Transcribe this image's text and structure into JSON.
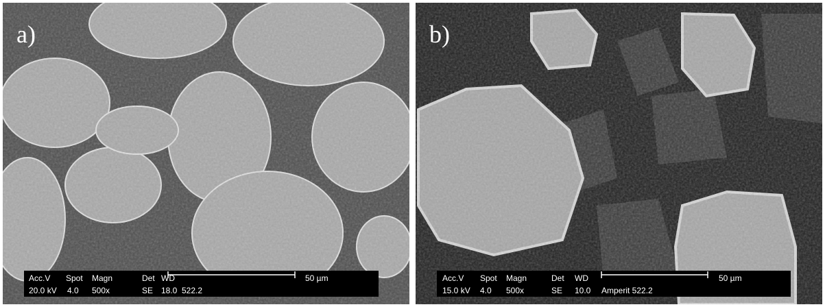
{
  "panels": [
    {
      "label": "a)",
      "info": {
        "headers": [
          "Acc.V",
          "Spot",
          "Magn",
          "Det",
          "WD"
        ],
        "values": [
          "20.0 kV",
          "4.0",
          "500x",
          "SE",
          "18.0",
          "522.2"
        ],
        "scale": "50 µm"
      }
    },
    {
      "label": "b)",
      "info": {
        "headers": [
          "Acc.V",
          "Spot",
          "Magn",
          "Det",
          "WD"
        ],
        "values": [
          "15.0 kV",
          "4.0",
          "500x",
          "SE",
          "10.0",
          "Amperit 522.2"
        ],
        "scale": "50 µm"
      }
    }
  ]
}
